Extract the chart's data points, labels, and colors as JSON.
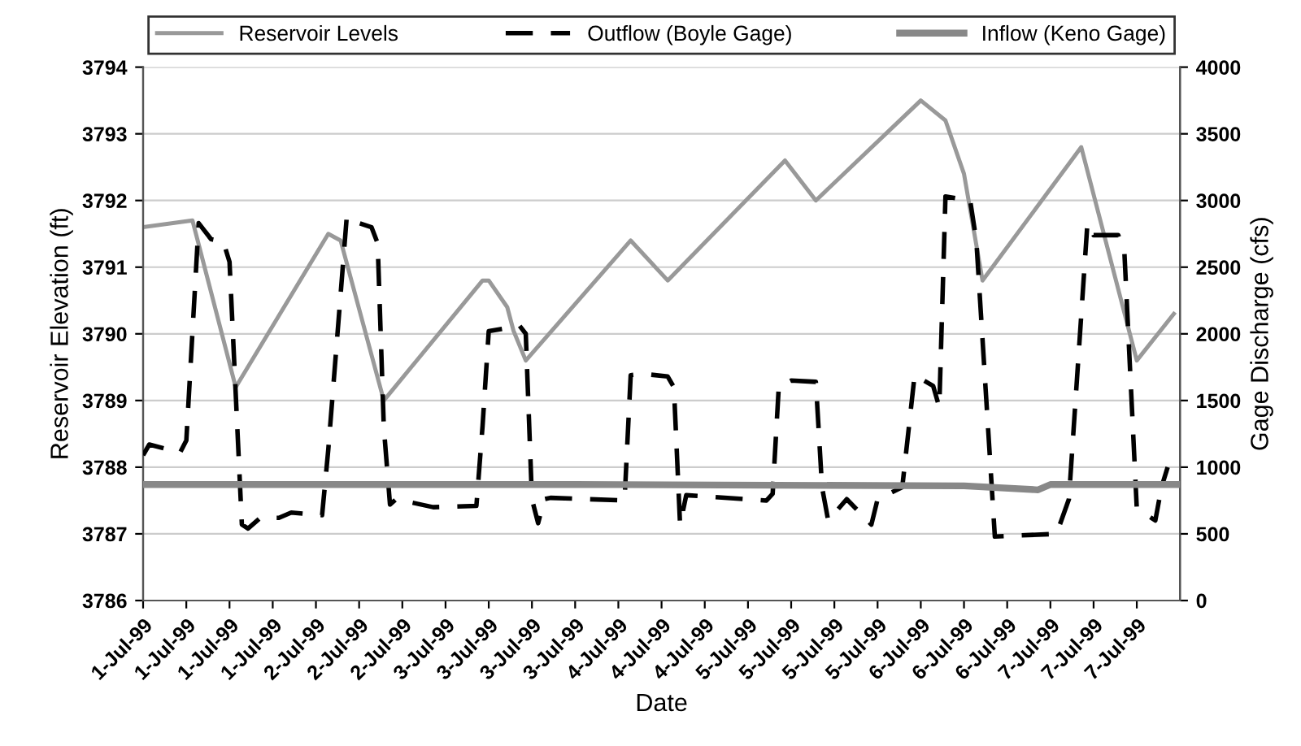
{
  "chart_data": {
    "type": "line",
    "xlabel": "Date",
    "ylabel": "Reservoir Elevation (ft)",
    "y2label": "Gage Discharge (cfs)",
    "xlim": [
      "1999-07-01T00:00",
      "1999-07-08T00:00"
    ],
    "xticks": [
      {
        "value": "1999-07-01T00:00",
        "label": "1-Jul-99"
      },
      {
        "value": "1999-07-01T07:00",
        "label": "1-Jul-99"
      },
      {
        "value": "1999-07-01T14:00",
        "label": "1-Jul-99"
      },
      {
        "value": "1999-07-01T21:00",
        "label": "1-Jul-99"
      },
      {
        "value": "1999-07-02T04:00",
        "label": "2-Jul-99"
      },
      {
        "value": "1999-07-02T11:00",
        "label": "2-Jul-99"
      },
      {
        "value": "1999-07-02T18:00",
        "label": "2-Jul-99"
      },
      {
        "value": "1999-07-03T01:00",
        "label": "3-Jul-99"
      },
      {
        "value": "1999-07-03T08:00",
        "label": "3-Jul-99"
      },
      {
        "value": "1999-07-03T15:00",
        "label": "3-Jul-99"
      },
      {
        "value": "1999-07-03T22:00",
        "label": "3-Jul-99"
      },
      {
        "value": "1999-07-04T05:00",
        "label": "4-Jul-99"
      },
      {
        "value": "1999-07-04T12:00",
        "label": "4-Jul-99"
      },
      {
        "value": "1999-07-04T19:00",
        "label": "4-Jul-99"
      },
      {
        "value": "1999-07-05T02:00",
        "label": "5-Jul-99"
      },
      {
        "value": "1999-07-05T09:00",
        "label": "5-Jul-99"
      },
      {
        "value": "1999-07-05T16:00",
        "label": "5-Jul-99"
      },
      {
        "value": "1999-07-05T23:00",
        "label": "5-Jul-99"
      },
      {
        "value": "1999-07-06T06:00",
        "label": "6-Jul-99"
      },
      {
        "value": "1999-07-06T13:00",
        "label": "6-Jul-99"
      },
      {
        "value": "1999-07-06T20:00",
        "label": "6-Jul-99"
      },
      {
        "value": "1999-07-07T03:00",
        "label": "7-Jul-99"
      },
      {
        "value": "1999-07-07T10:00",
        "label": "7-Jul-99"
      },
      {
        "value": "1999-07-07T17:00",
        "label": "7-Jul-99"
      }
    ],
    "ylim": [
      3786,
      3794
    ],
    "yticks": [
      3786,
      3787,
      3788,
      3789,
      3790,
      3791,
      3792,
      3793,
      3794
    ],
    "y2lim": [
      0,
      4000
    ],
    "y2ticks": [
      0,
      500,
      1000,
      1500,
      2000,
      2500,
      3000,
      3500,
      4000
    ],
    "grid": "y",
    "legend": "top",
    "marker": "none",
    "series": [
      {
        "name": "Reservoir Levels",
        "color": "#999999",
        "line_style": "solid",
        "x": [
          "1999-07-01T00:00",
          "1999-07-01T08:00",
          "1999-07-01T15:00",
          "1999-07-02T06:00",
          "1999-07-02T08:00",
          "1999-07-02T15:00",
          "1999-07-03T07:00",
          "1999-07-03T08:00",
          "1999-07-03T11:00",
          "1999-07-03T12:00",
          "1999-07-03T14:00",
          "1999-07-04T07:00",
          "1999-07-04T13:00",
          "1999-07-05T08:00",
          "1999-07-05T13:00",
          "1999-07-06T06:00",
          "1999-07-06T10:00",
          "1999-07-06T13:00",
          "1999-07-06T16:00",
          "1999-07-07T08:00",
          "1999-07-07T17:00",
          "1999-07-07T23:00"
        ],
        "values": [
          3791.6,
          3791.7,
          3789.2,
          3791.5,
          3791.4,
          3789.0,
          3790.8,
          3790.8,
          3790.4,
          3790.05,
          3789.6,
          3791.4,
          3790.8,
          3792.6,
          3792.0,
          3793.5,
          3793.2,
          3792.4,
          3790.8,
          3792.8,
          3789.6,
          3790.3
        ]
      },
      {
        "name": "Outflow (Boyle Gage)",
        "color": "#000000",
        "line_style": "dashed",
        "axis": "y2",
        "x": [
          "1999-07-01T00:00",
          "1999-07-01T01:00",
          "1999-07-01T06:00",
          "1999-07-01T07:00",
          "1999-07-01T09:00",
          "1999-07-01T11:00",
          "1999-07-01T13:00",
          "1999-07-01T14:00",
          "1999-07-01T16:00",
          "1999-07-01T17:00",
          "1999-07-01T19:00",
          "1999-07-01T22:00",
          "1999-07-02T00:00",
          "1999-07-02T05:00",
          "1999-07-02T06:00",
          "1999-07-02T09:00",
          "1999-07-02T11:00",
          "1999-07-02T13:00",
          "1999-07-02T14:00",
          "1999-07-02T15:00",
          "1999-07-02T16:00",
          "1999-07-02T17:00",
          "1999-07-02T23:00",
          "1999-07-03T06:00",
          "1999-07-03T07:00",
          "1999-07-03T08:00",
          "1999-07-03T13:00",
          "1999-07-03T14:00",
          "1999-07-03T15:00",
          "1999-07-03T16:00",
          "1999-07-03T17:00",
          "1999-07-03T18:00",
          "1999-07-04T06:00",
          "1999-07-04T07:00",
          "1999-07-04T09:00",
          "1999-07-04T13:00",
          "1999-07-04T14:00",
          "1999-07-04T15:00",
          "1999-07-04T16:00",
          "1999-07-05T05:00",
          "1999-07-05T06:00",
          "1999-07-05T07:00",
          "1999-07-05T09:00",
          "1999-07-05T13:00",
          "1999-07-05T14:00",
          "1999-07-05T15:00",
          "1999-07-05T18:00",
          "1999-07-05T22:00",
          "1999-07-05T23:00",
          "1999-07-06T03:00",
          "1999-07-06T05:00",
          "1999-07-06T08:00",
          "1999-07-06T09:00",
          "1999-07-06T10:00",
          "1999-07-06T14:00",
          "1999-07-06T15:00",
          "1999-07-06T18:00",
          "1999-07-07T04:00",
          "1999-07-07T06:00",
          "1999-07-07T09:00",
          "1999-07-07T10:00",
          "1999-07-07T14:00",
          "1999-07-07T15:00",
          "1999-07-07T17:00",
          "1999-07-07T20:00",
          "1999-07-07T21:00",
          "1999-07-07T22:00"
        ],
        "values": [
          1090,
          1170,
          1110,
          1200,
          2830,
          2710,
          2690,
          2540,
          570,
          540,
          620,
          620,
          660,
          640,
          1130,
          2880,
          2830,
          2800,
          2680,
          1300,
          720,
          760,
          700,
          710,
          1310,
          2020,
          2060,
          2000,
          760,
          580,
          760,
          770,
          750,
          1690,
          1700,
          1680,
          1600,
          570,
          790,
          750,
          800,
          1610,
          1650,
          1640,
          850,
          600,
          760,
          570,
          760,
          850,
          1690,
          1610,
          1450,
          3030,
          3000,
          2700,
          480,
          500,
          760,
          2830,
          2740,
          2740,
          2600,
          690,
          600,
          850,
          1000
        ]
      },
      {
        "name": "Inflow (Keno Gage)",
        "color": "#888888",
        "line_style": "solid",
        "axis": "y2",
        "x": [
          "1999-07-01T00:00",
          "1999-07-03T22:00",
          "1999-07-06T13:00",
          "1999-07-07T01:00",
          "1999-07-07T03:00",
          "1999-07-08T00:00"
        ],
        "values": [
          870,
          870,
          860,
          830,
          870,
          870
        ]
      }
    ]
  }
}
